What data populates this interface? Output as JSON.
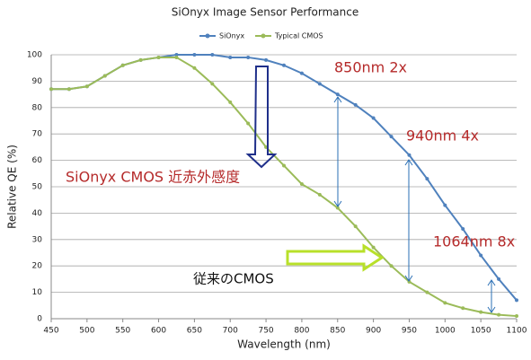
{
  "chart_data": {
    "type": "line",
    "title": "SiOnyx Image Sensor Performance",
    "x_label": "Wavelength (nm)",
    "y_label": "Relative QE (%)",
    "x": [
      450,
      475,
      500,
      525,
      550,
      575,
      600,
      625,
      650,
      675,
      700,
      725,
      750,
      775,
      800,
      825,
      850,
      875,
      900,
      925,
      950,
      975,
      1000,
      1025,
      1050,
      1075,
      1100
    ],
    "series": [
      {
        "name": "SiOnyx",
        "color": "#4f81bd",
        "values": [
          87,
          87,
          88,
          92,
          96,
          98,
          99,
          100,
          100,
          100,
          99,
          99,
          98,
          96,
          93,
          89,
          85,
          81,
          76,
          69,
          62,
          53,
          43,
          34,
          24,
          15,
          7
        ]
      },
      {
        "name": "Typical CMOS",
        "color": "#9bbb59",
        "values": [
          87,
          87,
          88,
          92,
          96,
          98,
          99,
          99,
          95,
          89,
          82,
          74,
          65,
          58,
          51,
          47,
          42,
          35,
          27,
          20,
          14,
          10,
          6,
          4,
          2.5,
          1.5,
          1
        ]
      }
    ],
    "xlim": [
      450,
      1100
    ],
    "xticks": [
      450,
      500,
      550,
      600,
      650,
      700,
      750,
      800,
      850,
      900,
      950,
      1000,
      1050,
      1100
    ],
    "ylim": [
      0,
      100
    ],
    "yticks": [
      0,
      10,
      20,
      30,
      40,
      50,
      60,
      70,
      80,
      90,
      100
    ],
    "grid": true,
    "legend": "top",
    "annotations": [
      "850nm 2x",
      "940nm 4x",
      "1064nm 8x",
      "SiOnyx CMOS 近赤外感度",
      "従来のCMOS"
    ]
  }
}
